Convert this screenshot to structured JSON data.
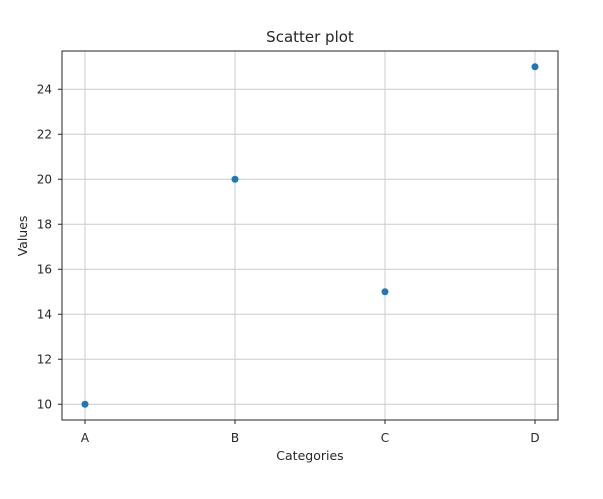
{
  "chart_data": {
    "type": "scatter",
    "title": "Scatter plot",
    "xlabel": "Categories",
    "ylabel": "Values",
    "categories": [
      "A",
      "B",
      "C",
      "D"
    ],
    "values": [
      10,
      20,
      15,
      25
    ],
    "ylim": [
      9.3,
      25.7
    ],
    "yticks": [
      10,
      12,
      14,
      16,
      18,
      20,
      22,
      24
    ],
    "grid": true,
    "marker_color": "#1f77b4"
  }
}
